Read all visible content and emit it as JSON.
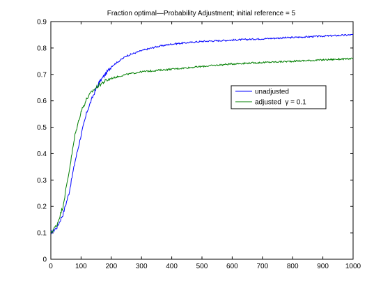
{
  "chart_data": {
    "type": "line",
    "title": "Fraction optimal—Probability Adjustment; initial reference = 5",
    "xlabel": "",
    "ylabel": "",
    "xlim": [
      0,
      1000
    ],
    "ylim": [
      0,
      0.9
    ],
    "xticks": [
      0,
      100,
      200,
      300,
      400,
      500,
      600,
      700,
      800,
      900,
      1000
    ],
    "yticks": [
      0,
      0.1,
      0.2,
      0.3,
      0.4,
      0.5,
      0.6,
      0.7,
      0.8,
      0.9
    ],
    "grid": false,
    "legend_position": "right",
    "series": [
      {
        "name": "unadjusted",
        "color": "#0000ff",
        "x": [
          0,
          20,
          40,
          60,
          80,
          100,
          120,
          140,
          160,
          180,
          200,
          250,
          300,
          350,
          400,
          450,
          500,
          600,
          700,
          800,
          900,
          1000
        ],
        "y": [
          0.1,
          0.12,
          0.17,
          0.25,
          0.37,
          0.47,
          0.56,
          0.62,
          0.67,
          0.7,
          0.73,
          0.77,
          0.79,
          0.805,
          0.815,
          0.82,
          0.825,
          0.83,
          0.835,
          0.84,
          0.845,
          0.85
        ]
      },
      {
        "name": "adjusted  γ = 0.1",
        "color": "#007f00",
        "x": [
          0,
          20,
          40,
          60,
          80,
          100,
          120,
          140,
          160,
          180,
          200,
          250,
          300,
          350,
          400,
          450,
          500,
          600,
          700,
          800,
          900,
          1000
        ],
        "y": [
          0.1,
          0.13,
          0.2,
          0.33,
          0.47,
          0.56,
          0.61,
          0.64,
          0.66,
          0.675,
          0.685,
          0.7,
          0.71,
          0.715,
          0.72,
          0.725,
          0.73,
          0.74,
          0.745,
          0.75,
          0.755,
          0.76
        ]
      }
    ]
  }
}
